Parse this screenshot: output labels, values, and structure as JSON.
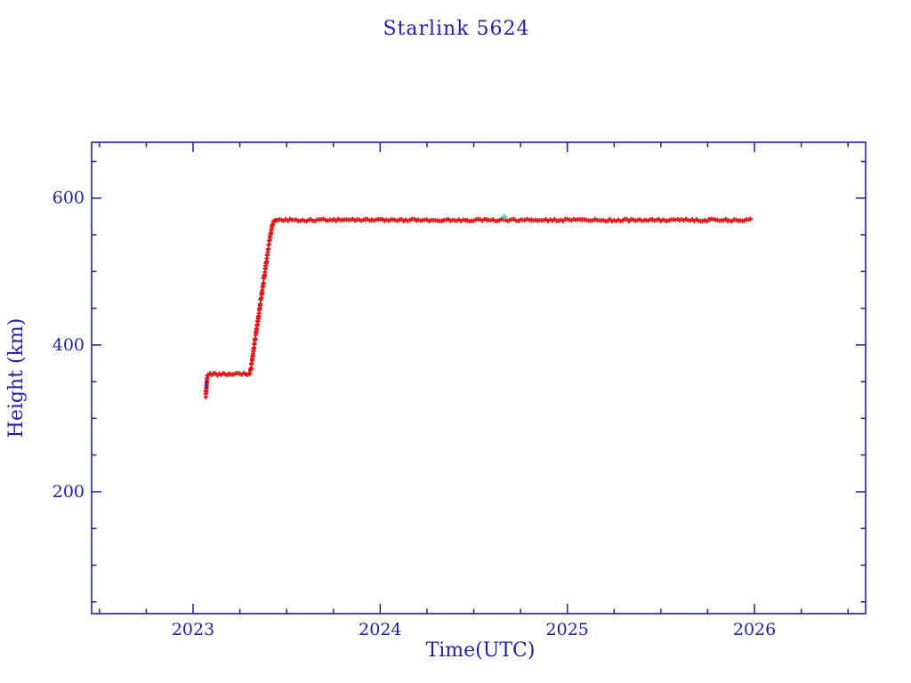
{
  "chart_data": {
    "type": "line",
    "title": "Starlink 5624",
    "xlabel": "Time(UTC)",
    "ylabel": "Height (km)",
    "xlim": [
      2022.458,
      2026.594
    ],
    "ylim": [
      34,
      676
    ],
    "grid": false,
    "legend": null,
    "colors": {
      "axis": "#1e1ea8",
      "text": "#1e1ea8",
      "line": "#5bcccc",
      "marker": "#e81212",
      "background": "#ffffff"
    },
    "marker_style": "plus",
    "x_ticks": {
      "major": [
        {
          "v": 2023,
          "label": "2023"
        },
        {
          "v": 2024,
          "label": "2024"
        },
        {
          "v": 2025,
          "label": "2025"
        },
        {
          "v": 2026,
          "label": "2026"
        }
      ],
      "minor_step": 0.25
    },
    "y_ticks": {
      "major": [
        {
          "v": 200,
          "label": "200"
        },
        {
          "v": 400,
          "label": "400"
        },
        {
          "v": 600,
          "label": "600"
        }
      ],
      "minor_step": 50
    },
    "series": [
      {
        "name": "height_km",
        "keypoints": [
          [
            2023.068,
            330
          ],
          [
            2023.0705,
            339
          ],
          [
            2023.073,
            349
          ],
          [
            2023.076,
            356
          ],
          [
            2023.08,
            359.5
          ],
          [
            2023.09,
            360
          ],
          [
            2023.15,
            360
          ],
          [
            2023.22,
            360
          ],
          [
            2023.3,
            360
          ],
          [
            2023.307,
            364
          ],
          [
            2023.315,
            378
          ],
          [
            2023.324,
            394
          ],
          [
            2023.333,
            410
          ],
          [
            2023.342,
            426
          ],
          [
            2023.351,
            441
          ],
          [
            2023.36,
            457
          ],
          [
            2023.369,
            473
          ],
          [
            2023.378,
            489
          ],
          [
            2023.387,
            505
          ],
          [
            2023.396,
            521
          ],
          [
            2023.404,
            535
          ],
          [
            2023.411,
            546
          ],
          [
            2023.418,
            556
          ],
          [
            2023.424,
            563
          ],
          [
            2023.43,
            567.5
          ],
          [
            2023.438,
            569.5
          ],
          [
            2023.45,
            570
          ],
          [
            2024.0,
            570
          ],
          [
            2024.5,
            570
          ],
          [
            2025.0,
            570
          ],
          [
            2025.5,
            570
          ],
          [
            2025.98,
            570
          ]
        ]
      }
    ],
    "cyan_outlier": [
      2024.664,
      574.5
    ],
    "navy_segment": {
      "x": 2023.0715,
      "y_from": 340,
      "y_to": 352
    }
  }
}
